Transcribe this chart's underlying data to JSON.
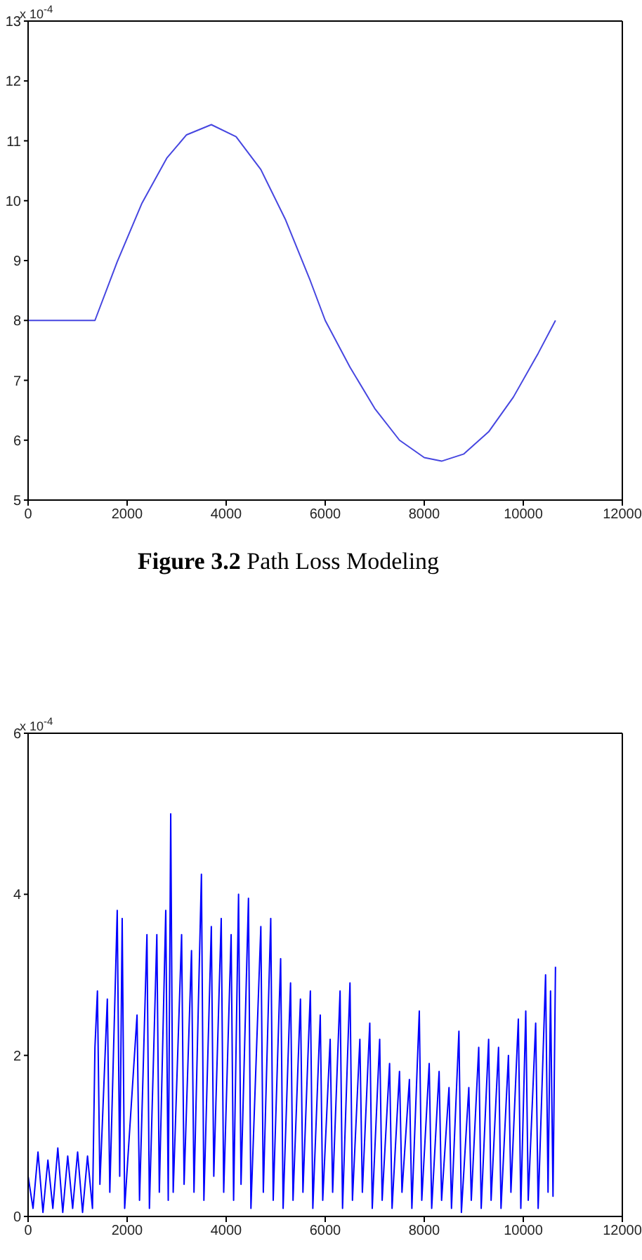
{
  "chart_data": [
    {
      "type": "line",
      "annotations": [
        "x 10$^{-4}$",
        "Figure 3.2 Path Loss Modeling"
      ],
      "color": "#4646e0",
      "x": [
        0,
        1350,
        1800,
        2300,
        2800,
        3200,
        3700,
        4200,
        4700,
        5200,
        5700,
        6000,
        6500,
        7000,
        7500,
        8000,
        8350,
        8800,
        9300,
        9800,
        10300,
        10650
      ],
      "values": [
        8,
        8,
        8.98,
        9.96,
        10.71,
        11.1,
        11.27,
        11.07,
        10.52,
        9.68,
        8.66,
        8,
        7.22,
        6.53,
        6.0,
        5.71,
        5.65,
        5.77,
        6.14,
        6.72,
        7.45,
        8
      ],
      "xlim": [
        0,
        12000
      ],
      "xticks": [
        0,
        2000,
        4000,
        6000,
        8000,
        10000,
        12000
      ],
      "ylim": [
        5,
        13
      ],
      "yticks": [
        5,
        6,
        7,
        8,
        9,
        10,
        11,
        12,
        13
      ]
    },
    {
      "type": "line",
      "annotations": [
        "x 10$^{-4}$"
      ],
      "color": "#0000ff",
      "x": [
        0,
        100,
        200,
        300,
        400,
        500,
        600,
        700,
        800,
        900,
        1000,
        1100,
        1200,
        1300,
        1350,
        1400,
        1450,
        1600,
        1650,
        1800,
        1850,
        1900,
        1950,
        2200,
        2250,
        2400,
        2450,
        2600,
        2650,
        2780,
        2830,
        2880,
        2930,
        3100,
        3150,
        3300,
        3350,
        3500,
        3550,
        3700,
        3750,
        3900,
        3950,
        4100,
        4150,
        4250,
        4300,
        4450,
        4500,
        4700,
        4750,
        4900,
        4950,
        5100,
        5150,
        5300,
        5350,
        5500,
        5550,
        5700,
        5750,
        5900,
        5950,
        6100,
        6150,
        6300,
        6350,
        6500,
        6550,
        6700,
        6750,
        6900,
        6950,
        7100,
        7150,
        7300,
        7350,
        7500,
        7550,
        7700,
        7750,
        7900,
        7950,
        8100,
        8150,
        8300,
        8350,
        8500,
        8550,
        8700,
        8750,
        8900,
        8950,
        9100,
        9150,
        9300,
        9350,
        9500,
        9550,
        9700,
        9750,
        9900,
        9950,
        10050,
        10100,
        10250,
        10300,
        10450,
        10500,
        10550,
        10600,
        10650
      ],
      "values": [
        0.5,
        0.1,
        0.8,
        0.05,
        0.7,
        0.1,
        0.85,
        0.05,
        0.75,
        0.1,
        0.8,
        0.05,
        0.75,
        0.1,
        2.1,
        2.8,
        0.4,
        2.7,
        0.3,
        3.8,
        0.5,
        3.7,
        0.1,
        2.5,
        0.2,
        3.5,
        0.1,
        3.5,
        0.3,
        3.8,
        0.2,
        5.0,
        0.3,
        3.5,
        0.4,
        3.3,
        0.3,
        4.25,
        0.2,
        3.6,
        0.5,
        3.7,
        0.3,
        3.5,
        0.2,
        4.0,
        0.4,
        3.95,
        0.1,
        3.6,
        0.3,
        3.7,
        0.2,
        3.2,
        0.1,
        2.9,
        0.2,
        2.7,
        0.3,
        2.8,
        0.1,
        2.5,
        0.2,
        2.2,
        0.3,
        2.8,
        0.1,
        2.9,
        0.2,
        2.2,
        0.3,
        2.4,
        0.1,
        2.2,
        0.2,
        1.9,
        0.1,
        1.8,
        0.3,
        1.7,
        0.1,
        2.55,
        0.2,
        1.9,
        0.1,
        1.8,
        0.2,
        1.6,
        0.1,
        2.3,
        0.05,
        1.6,
        0.2,
        2.1,
        0.1,
        2.2,
        0.2,
        2.1,
        0.1,
        2.0,
        0.3,
        2.45,
        0.1,
        2.55,
        0.2,
        2.4,
        0.1,
        3.0,
        0.3,
        2.8,
        0.25,
        3.1
      ],
      "xlim": [
        0,
        12000
      ],
      "xticks": [
        0,
        2000,
        4000,
        6000,
        8000,
        10000,
        12000
      ],
      "ylim": [
        0,
        6
      ],
      "yticks": [
        0,
        2,
        4,
        6
      ]
    }
  ]
}
